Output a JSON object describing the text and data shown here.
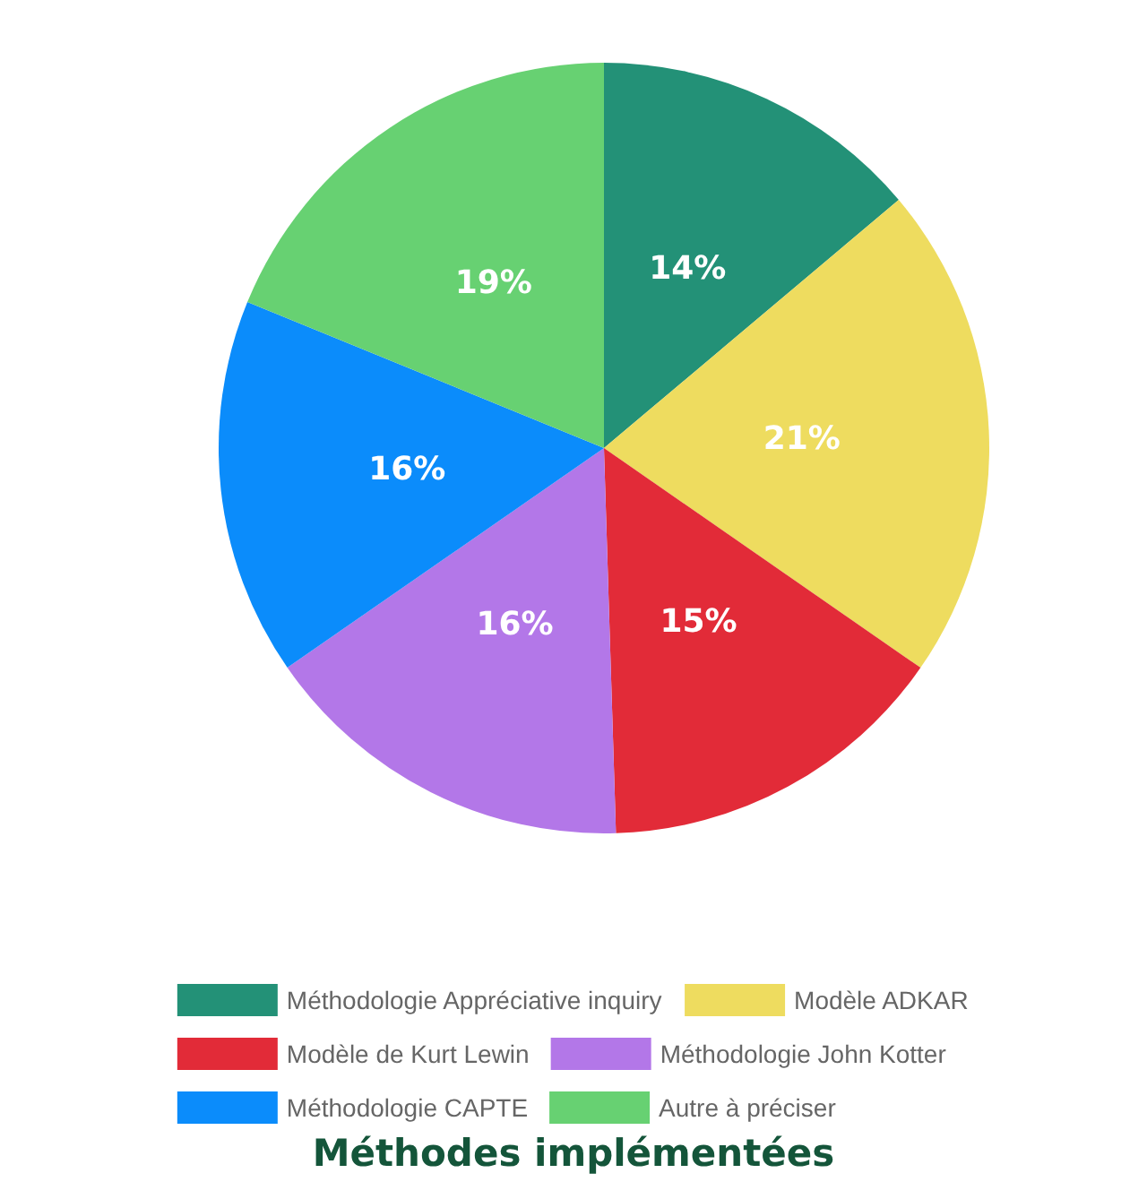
{
  "chart_data": {
    "type": "pie",
    "title": "Méthodes implémentées",
    "categories": [
      "Méthodologie Appréciative inquiry",
      "Modèle ADKAR",
      "Modèle de Kurt Lewin",
      "Méthodologie John Kotter",
      "Méthodologie CAPTE",
      "Autre à préciser"
    ],
    "values": [
      14,
      21,
      15,
      16,
      16,
      19
    ],
    "value_labels": [
      "14%",
      "21%",
      "15%",
      "16%",
      "16%",
      "19%"
    ],
    "colors": [
      "#239177",
      "#eedc5f",
      "#e22b38",
      "#b377e8",
      "#0b8cfb",
      "#67d172"
    ],
    "legend": "bottom"
  }
}
